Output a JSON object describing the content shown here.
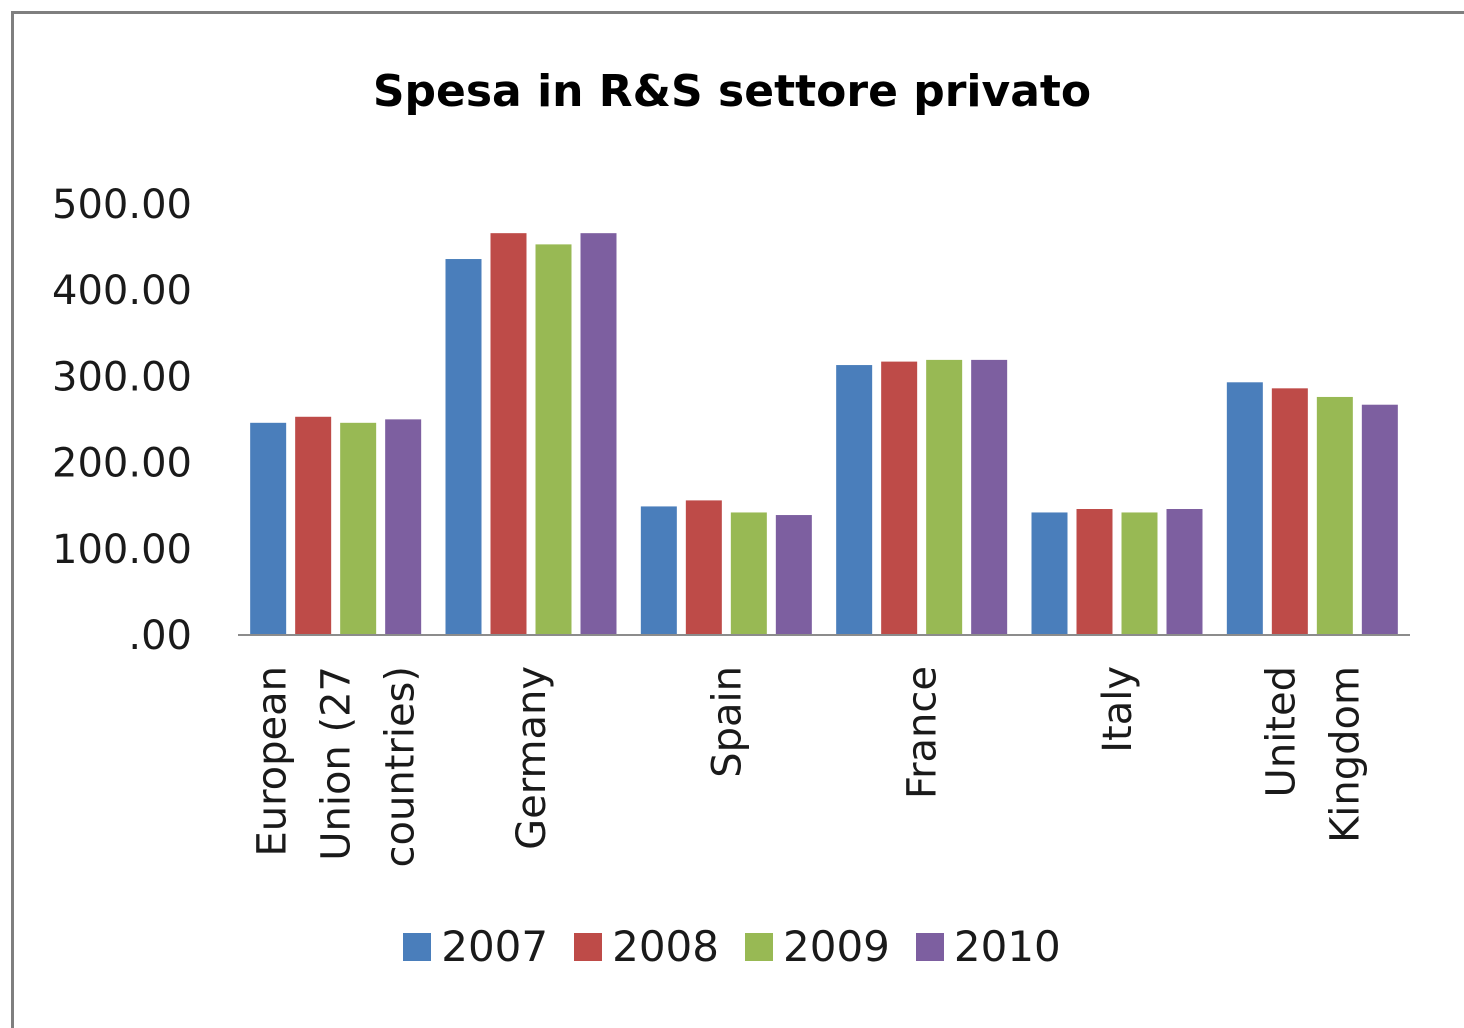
{
  "chart_data": {
    "type": "bar",
    "title": "Spesa in R&S settore privato",
    "xlabel": "",
    "ylabel": "",
    "ylim": [
      0,
      500
    ],
    "y_ticks": [
      ".00",
      "100.00",
      "200.00",
      "300.00",
      "400.00",
      "500.00"
    ],
    "y_tick_values": [
      0,
      100,
      200,
      300,
      400,
      500
    ],
    "grid": false,
    "legend_position": "bottom",
    "categories": [
      [
        "European",
        "Union (27",
        "countries)"
      ],
      [
        "Germany"
      ],
      [
        "Spain"
      ],
      [
        "France"
      ],
      [
        "Italy"
      ],
      [
        "United",
        "Kingdom"
      ]
    ],
    "series": [
      {
        "name": "2007",
        "color": "#4a7ebb",
        "values": [
          245,
          435,
          148,
          312,
          141,
          292
        ]
      },
      {
        "name": "2008",
        "color": "#be4b48",
        "values": [
          252,
          465,
          155,
          316,
          145,
          285
        ]
      },
      {
        "name": "2009",
        "color": "#98b954",
        "values": [
          245,
          452,
          141,
          318,
          141,
          275
        ]
      },
      {
        "name": "2010",
        "color": "#7d5fa0",
        "values": [
          249,
          465,
          138,
          318,
          145,
          266
        ]
      }
    ]
  }
}
